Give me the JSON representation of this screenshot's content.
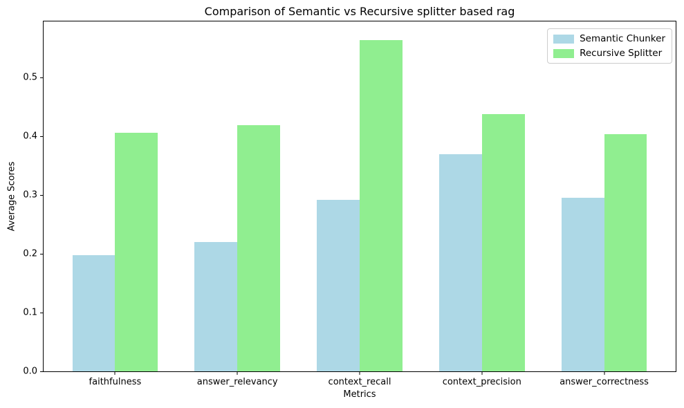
{
  "chart_data": {
    "type": "bar",
    "title": "Comparison of Semantic vs Recursive splitter based rag",
    "xlabel": "Metrics",
    "ylabel": "Average Scores",
    "categories": [
      "faithfulness",
      "answer_relevancy",
      "context_recall",
      "context_precision",
      "answer_correctness"
    ],
    "series": [
      {
        "name": "Semantic Chunker",
        "color": "#ADD8E6",
        "values": [
          0.198,
          0.22,
          0.292,
          0.369,
          0.295
        ]
      },
      {
        "name": "Recursive Splitter",
        "color": "#90EE90",
        "values": [
          0.406,
          0.419,
          0.563,
          0.438,
          0.403
        ]
      }
    ],
    "ylim": [
      0,
      0.595
    ],
    "yticks": [
      "0.0",
      "0.1",
      "0.2",
      "0.3",
      "0.4",
      "0.5"
    ],
    "grid": false,
    "legend_position": "upper right",
    "bar_width_fraction": 0.35
  },
  "figure": {
    "background": "#ffffff",
    "text_color": "#000000"
  }
}
